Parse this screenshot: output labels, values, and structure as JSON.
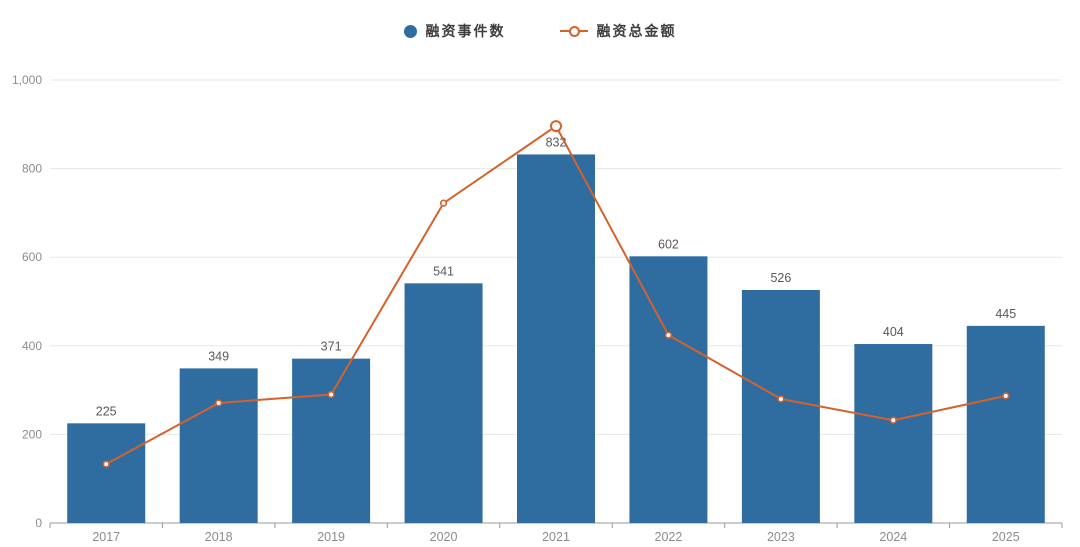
{
  "legend": {
    "items": [
      {
        "label": "融资事件数",
        "type": "bar",
        "color": "#2f6da1"
      },
      {
        "label": "融资总金额",
        "type": "line",
        "color": "#d5612c"
      }
    ]
  },
  "chart_data": {
    "type": "bar+line combo",
    "categories": [
      "2017",
      "2018",
      "2019",
      "2020",
      "2021",
      "2022",
      "2023",
      "2024",
      "2025"
    ],
    "series": [
      {
        "name": "融资事件数",
        "type": "bar",
        "color": "#2f6da1",
        "values": [
          225,
          349,
          371,
          541,
          832,
          602,
          526,
          404,
          445
        ],
        "data_labels_visible": true
      },
      {
        "name": "融资总金额",
        "type": "line",
        "color": "#d5612c",
        "values": [
          133,
          271,
          290,
          722,
          896,
          424,
          280,
          232,
          287
        ],
        "values_estimated_from_plot": true,
        "marker": "hollow-circle",
        "emphasized_point_category": "2021"
      }
    ],
    "ylim": [
      0,
      1000
    ],
    "yticks": [
      0,
      200,
      400,
      600,
      800,
      1000
    ],
    "ytick_labels": [
      "0",
      "200",
      "400",
      "600",
      "800",
      "1,000"
    ],
    "xlabel": "",
    "ylabel": "",
    "title": "",
    "grid": "horizontal-light",
    "legend_position": "top-center",
    "colors": {
      "bar_label_text": "#595959",
      "axis_tick_text": "#8c8c8c",
      "axis_line": "#999999",
      "gridline": "#e7e7e7",
      "background": "#ffffff"
    }
  }
}
